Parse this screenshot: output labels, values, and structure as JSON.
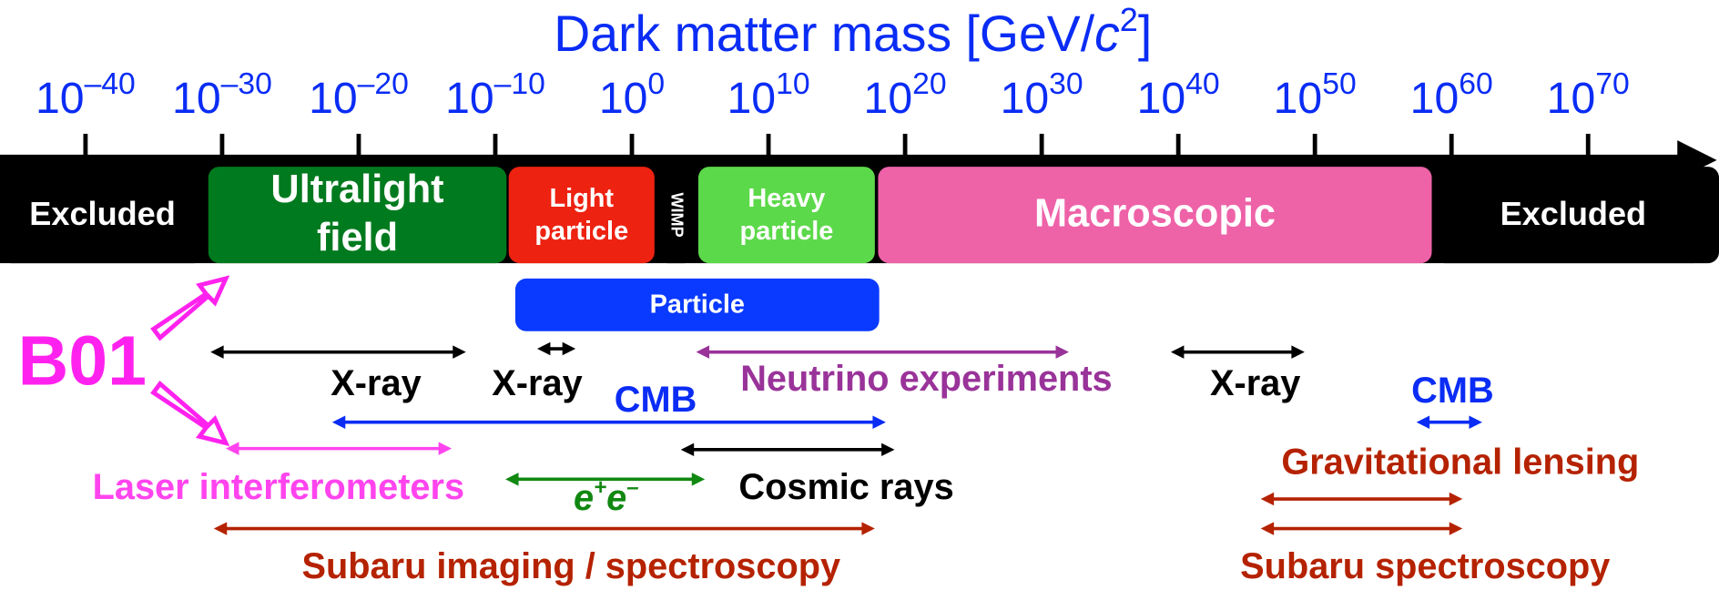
{
  "title": {
    "parts": [
      "Dark matter mass [GeV/",
      "c",
      "2",
      "]"
    ]
  },
  "ticks": [
    {
      "base": "10",
      "exp": "–40"
    },
    {
      "base": "10",
      "exp": "–30"
    },
    {
      "base": "10",
      "exp": "–20"
    },
    {
      "base": "10",
      "exp": "–10"
    },
    {
      "base": "10",
      "exp": "0"
    },
    {
      "base": "10",
      "exp": "10"
    },
    {
      "base": "10",
      "exp": "20"
    },
    {
      "base": "10",
      "exp": "30"
    },
    {
      "base": "10",
      "exp": "40"
    },
    {
      "base": "10",
      "exp": "50"
    },
    {
      "base": "10",
      "exp": "60"
    },
    {
      "base": "10",
      "exp": "70"
    }
  ],
  "regions": [
    {
      "lines": [
        "Excluded"
      ]
    },
    {
      "lines": [
        "Ultralight",
        "field"
      ]
    },
    {
      "lines": [
        "Light",
        "particle"
      ]
    },
    {
      "lines": [
        "WIMP"
      ]
    },
    {
      "lines": [
        "Heavy",
        "particle"
      ]
    },
    {
      "lines": [
        "Macroscopic"
      ]
    },
    {
      "lines": [
        "Excluded"
      ]
    },
    {
      "lines": [
        "Particle"
      ]
    }
  ],
  "ranges": [
    {
      "label": "X-ray"
    },
    {
      "label": "X-ray"
    },
    {
      "label": "Neutrino experiments"
    },
    {
      "label": "X-ray"
    },
    {
      "label": "CMB"
    },
    {
      "label": "CMB"
    },
    {
      "label": "Laser interferometers"
    },
    {
      "label_parts": [
        "e",
        "+",
        "e",
        "–"
      ]
    },
    {
      "label": "Cosmic rays"
    },
    {
      "label": "Subaru imaging / spectroscopy"
    },
    {
      "label": "Gravitational lensing"
    },
    {
      "label": "Subaru spectroscopy"
    }
  ],
  "project": "B01"
}
